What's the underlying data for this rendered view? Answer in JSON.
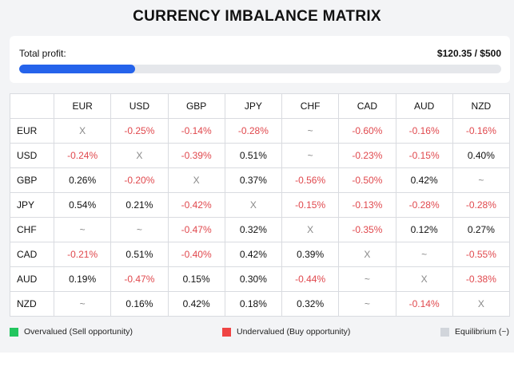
{
  "title": "CURRENCY IMBALANCE MATRIX",
  "profit": {
    "label": "Total profit:",
    "value_text": "$120.35 / $500",
    "fraction": 0.2407,
    "bar_color": "#2563eb"
  },
  "matrix": {
    "columns": [
      "EUR",
      "USD",
      "GBP",
      "JPY",
      "CHF",
      "CAD",
      "AUD",
      "NZD"
    ],
    "rows": [
      {
        "label": "EUR",
        "cells": [
          "X",
          "-0.25%",
          "-0.14%",
          "-0.28%",
          "~",
          "-0.60%",
          "-0.16%",
          "-0.16%"
        ]
      },
      {
        "label": "USD",
        "cells": [
          "-0.24%",
          "X",
          "-0.39%",
          "0.51%",
          "~",
          "-0.23%",
          "-0.15%",
          "0.40%"
        ]
      },
      {
        "label": "GBP",
        "cells": [
          "0.26%",
          "-0.20%",
          "X",
          "0.37%",
          "-0.56%",
          "-0.50%",
          "0.42%",
          "~"
        ]
      },
      {
        "label": "JPY",
        "cells": [
          "0.54%",
          "0.21%",
          "-0.42%",
          "X",
          "-0.15%",
          "-0.13%",
          "-0.28%",
          "-0.28%"
        ]
      },
      {
        "label": "CHF",
        "cells": [
          "~",
          "~",
          "-0.47%",
          "0.32%",
          "X",
          "-0.35%",
          "0.12%",
          "0.27%"
        ]
      },
      {
        "label": "CAD",
        "cells": [
          "-0.21%",
          "0.51%",
          "-0.40%",
          "0.42%",
          "0.39%",
          "X",
          "~",
          "-0.55%"
        ]
      },
      {
        "label": "AUD",
        "cells": [
          "0.19%",
          "-0.47%",
          "0.15%",
          "0.30%",
          "-0.44%",
          "~",
          "X",
          "-0.38%"
        ]
      },
      {
        "label": "NZD",
        "cells": [
          "~",
          "0.16%",
          "0.42%",
          "0.18%",
          "0.32%",
          "~",
          "-0.14%",
          "X"
        ]
      }
    ]
  },
  "legend": [
    {
      "label": "Overvalued (Sell opportunity)",
      "color": "#22c55e"
    },
    {
      "label": "Undervalued (Buy opportunity)",
      "color": "#ef4444"
    },
    {
      "label": "Equilibrium (~)",
      "color": "#d1d5db"
    }
  ]
}
